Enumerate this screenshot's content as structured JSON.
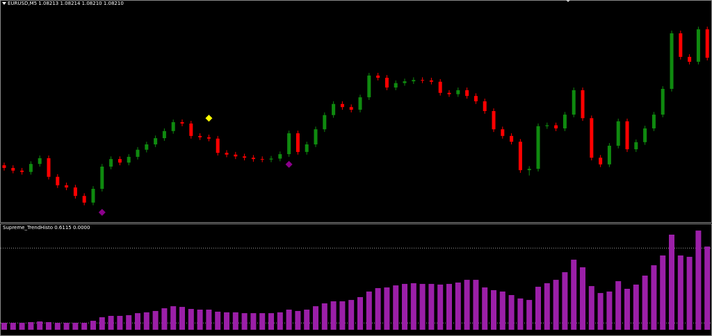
{
  "chart_data": [
    {
      "type": "candlestick",
      "title": "EURUSD,M5  1.08213 1.08214 1.08210 1.08210",
      "up_color": "#0f8a0f",
      "down_color": "#ff0000",
      "ylim": [
        1.0784,
        1.0834
      ],
      "open": [
        1.07968,
        1.07962,
        1.07956,
        1.07953,
        1.07971,
        1.07984,
        1.07942,
        1.07923,
        1.07918,
        1.07899,
        1.07884,
        1.07915,
        1.07965,
        1.07982,
        1.07974,
        1.07987,
        1.08003,
        1.08015,
        1.08029,
        1.08045,
        1.08065,
        1.08062,
        1.08034,
        1.08031,
        1.08028,
        1.07996,
        1.07992,
        1.07988,
        1.07985,
        1.07982,
        1.07981,
        1.07983,
        1.07993,
        1.0804,
        1.07998,
        1.08015,
        1.08049,
        1.08081,
        1.08106,
        1.08099,
        1.08093,
        1.08121,
        1.0817,
        1.08165,
        1.08143,
        1.08153,
        1.08157,
        1.0816,
        1.08159,
        1.08156,
        1.08131,
        1.08128,
        1.08137,
        1.08124,
        1.08112,
        1.0809,
        1.08049,
        1.08034,
        1.08021,
        1.07957,
        1.0796,
        1.08056,
        1.08058,
        1.08051,
        1.08082,
        1.08137,
        1.08074,
        1.07985,
        1.0797,
        1.08012,
        1.08067,
        1.08004,
        1.0802,
        1.08051,
        1.08082,
        1.0814,
        1.08265,
        1.08212,
        1.08201,
        1.08274
      ],
      "high": [
        1.07974,
        1.07968,
        1.07962,
        1.07977,
        1.0799,
        1.0799,
        1.07948,
        1.07929,
        1.07924,
        1.07905,
        1.07921,
        1.07971,
        1.07988,
        1.07988,
        1.07993,
        1.08009,
        1.08021,
        1.08035,
        1.08051,
        1.08071,
        1.08071,
        1.08068,
        1.0804,
        1.08037,
        1.08034,
        1.08002,
        1.07998,
        1.07994,
        1.07991,
        1.07988,
        1.07989,
        1.07999,
        1.08046,
        1.08046,
        1.08021,
        1.08055,
        1.08087,
        1.08112,
        1.08112,
        1.08105,
        1.08127,
        1.08176,
        1.08176,
        1.08171,
        1.08159,
        1.08163,
        1.08166,
        1.08166,
        1.08165,
        1.08162,
        1.08137,
        1.08143,
        1.08143,
        1.0813,
        1.08118,
        1.08096,
        1.08055,
        1.0804,
        1.08027,
        1.07966,
        1.08062,
        1.08064,
        1.08064,
        1.08088,
        1.08143,
        1.08143,
        1.0808,
        1.07991,
        1.08018,
        1.08073,
        1.08073,
        1.08026,
        1.08057,
        1.08088,
        1.08146,
        1.08271,
        1.08271,
        1.08218,
        1.0828,
        1.0828
      ],
      "low": [
        1.07956,
        1.0795,
        1.07947,
        1.07947,
        1.07965,
        1.07936,
        1.07917,
        1.07912,
        1.07893,
        1.07878,
        1.07878,
        1.07909,
        1.07959,
        1.07968,
        1.07968,
        1.07981,
        1.07997,
        1.08009,
        1.08023,
        1.08039,
        1.08056,
        1.08028,
        1.08025,
        1.08022,
        1.0799,
        1.07986,
        1.07982,
        1.07979,
        1.07976,
        1.07975,
        1.07975,
        1.07977,
        1.07987,
        1.07992,
        1.07992,
        1.08009,
        1.08043,
        1.08075,
        1.08093,
        1.08087,
        1.08087,
        1.08115,
        1.08159,
        1.08137,
        1.08137,
        1.08147,
        1.08151,
        1.08153,
        1.0815,
        1.08125,
        1.08122,
        1.08122,
        1.08118,
        1.08106,
        1.08084,
        1.08043,
        1.08028,
        1.08015,
        1.07951,
        1.07945,
        1.07954,
        1.0805,
        1.08045,
        1.08045,
        1.08076,
        1.08068,
        1.07979,
        1.07964,
        1.07964,
        1.08006,
        1.07998,
        1.07998,
        1.08014,
        1.08045,
        1.08076,
        1.08134,
        1.08206,
        1.08195,
        1.08195,
        1.08204
      ],
      "close": [
        1.07962,
        1.07956,
        1.07953,
        1.07971,
        1.07984,
        1.07942,
        1.07923,
        1.07918,
        1.07899,
        1.07884,
        1.07915,
        1.07965,
        1.07982,
        1.07974,
        1.07987,
        1.08003,
        1.08015,
        1.08029,
        1.08045,
        1.08065,
        1.08062,
        1.08034,
        1.08031,
        1.08028,
        1.07996,
        1.07992,
        1.07988,
        1.07985,
        1.07982,
        1.07981,
        1.07983,
        1.07993,
        1.0804,
        1.07998,
        1.08015,
        1.08049,
        1.08081,
        1.08106,
        1.08099,
        1.08093,
        1.08121,
        1.0817,
        1.08165,
        1.08143,
        1.08153,
        1.08157,
        1.0816,
        1.08159,
        1.08156,
        1.08131,
        1.08128,
        1.08137,
        1.08124,
        1.08112,
        1.0809,
        1.08049,
        1.08034,
        1.08021,
        1.07957,
        1.0796,
        1.08056,
        1.08058,
        1.08051,
        1.08082,
        1.08137,
        1.08074,
        1.07985,
        1.0797,
        1.08012,
        1.08067,
        1.08004,
        1.0802,
        1.08051,
        1.08082,
        1.0814,
        1.08265,
        1.08212,
        1.08201,
        1.08274,
        1.0821
      ],
      "markers": [
        {
          "index": 11,
          "value": 1.07862,
          "color": "#8b008b"
        },
        {
          "index": 23,
          "value": 1.08074,
          "color": "#ffff00"
        },
        {
          "index": 32,
          "value": 1.0797,
          "color": "#8b008b"
        }
      ]
    },
    {
      "type": "bar",
      "title": "Supreme_TrendHisto 0.6115 0.0000",
      "color": "#9b1fa8",
      "ylim": [
        0,
        0.75
      ],
      "levels": [
        0.05,
        0.6
      ],
      "values": [
        0.051,
        0.051,
        0.051,
        0.056,
        0.061,
        0.056,
        0.051,
        0.051,
        0.051,
        0.051,
        0.066,
        0.092,
        0.102,
        0.102,
        0.107,
        0.122,
        0.128,
        0.138,
        0.158,
        0.173,
        0.168,
        0.153,
        0.148,
        0.148,
        0.133,
        0.128,
        0.128,
        0.122,
        0.122,
        0.122,
        0.122,
        0.128,
        0.148,
        0.138,
        0.148,
        0.173,
        0.194,
        0.209,
        0.209,
        0.219,
        0.24,
        0.281,
        0.306,
        0.311,
        0.326,
        0.337,
        0.342,
        0.337,
        0.337,
        0.332,
        0.337,
        0.347,
        0.367,
        0.367,
        0.311,
        0.291,
        0.281,
        0.255,
        0.23,
        0.219,
        0.316,
        0.342,
        0.367,
        0.423,
        0.515,
        0.459,
        0.321,
        0.27,
        0.281,
        0.357,
        0.301,
        0.332,
        0.398,
        0.474,
        0.546,
        0.699,
        0.546,
        0.536,
        0.729,
        0.6115
      ]
    }
  ]
}
